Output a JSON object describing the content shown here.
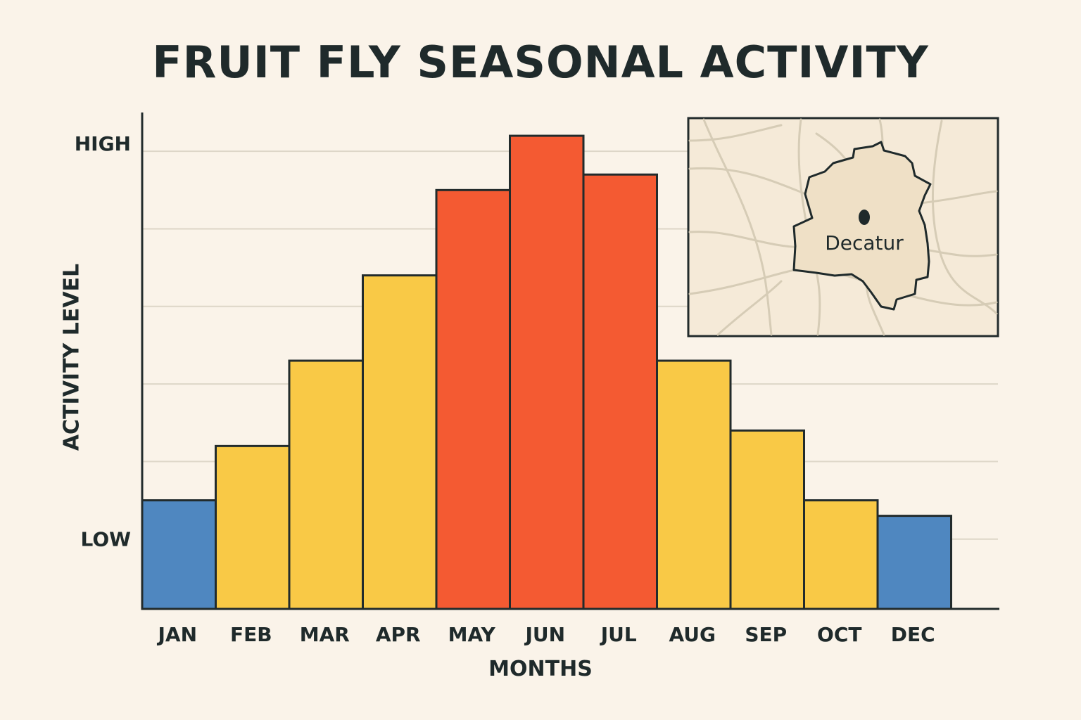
{
  "chart_data": {
    "type": "bar",
    "title": "FRUIT FLY SEASONAL ACTIVITY",
    "xlabel": "MONTHS",
    "ylabel": "ACTIVITY LEVEL",
    "categories": [
      "JAN",
      "FEB",
      "MAR",
      "APR",
      "MAY",
      "JUN",
      "JUL",
      "AUG",
      "SEP",
      "OCT",
      "DEC"
    ],
    "values": [
      1.4,
      2.1,
      3.2,
      4.3,
      5.4,
      6.1,
      5.6,
      3.2,
      2.3,
      1.4,
      1.2
    ],
    "bar_levels": [
      "low",
      "medium",
      "medium",
      "medium",
      "high",
      "high",
      "high",
      "medium",
      "medium",
      "medium",
      "low"
    ],
    "ylim": [
      0,
      6.4
    ],
    "y_ticks": [
      {
        "value": 0.9,
        "label": "LOW"
      },
      {
        "value": 6.0,
        "label": "HIGH"
      }
    ],
    "grid": true,
    "grid_values": [
      0.9,
      1.9,
      2.9,
      3.9,
      4.9,
      5.9
    ],
    "level_colors": {
      "low": "#4f87c0",
      "medium": "#f9c946",
      "high": "#f45a32"
    },
    "inset_map": {
      "place_label": "Decatur",
      "marker": "dot-icon"
    }
  }
}
